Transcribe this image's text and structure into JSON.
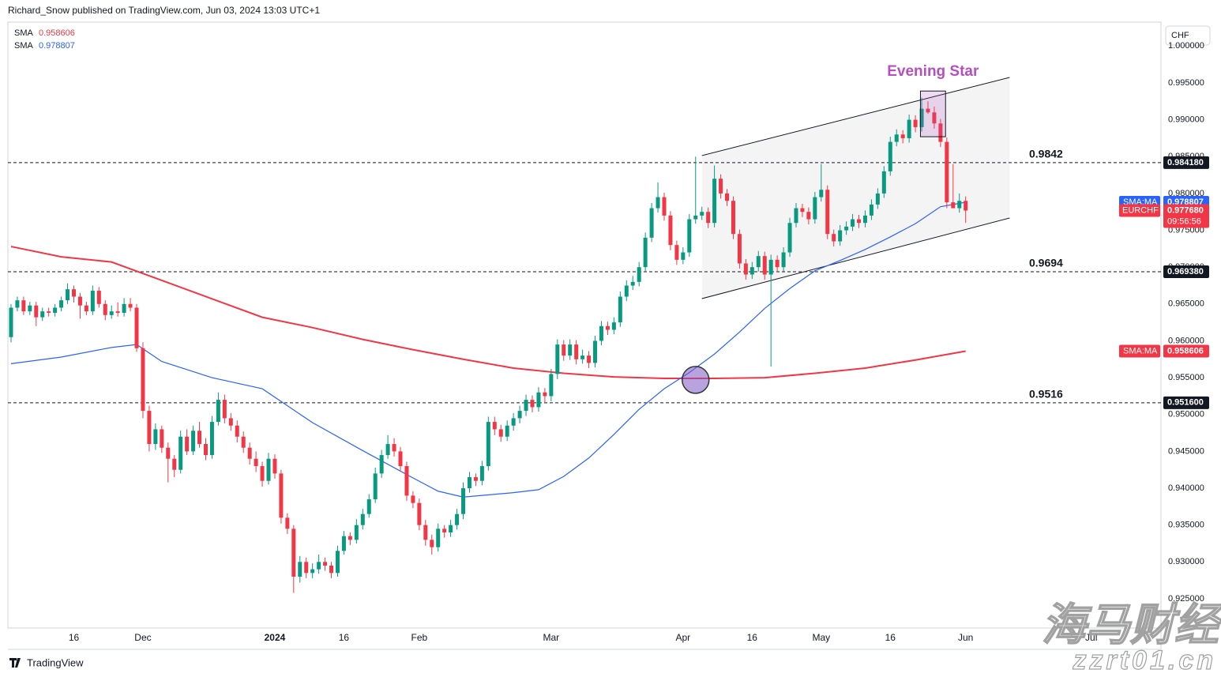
{
  "header": "Richard_Snow published on TradingView.com, Jun 03, 2024 13:03 UTC+1",
  "footer": "TradingView",
  "watermark": [
    "海马财经",
    "zzrt01.cn"
  ],
  "chart_data": {
    "type": "candlestick",
    "currency": "CHF",
    "grid": false,
    "up_color": "#089981",
    "down_color": "#f23645",
    "xlim": [
      -0.5,
      183.1
    ],
    "ylim": [
      0.92103,
      1.00325
    ],
    "xticks": [
      {
        "value": 10,
        "label": "16"
      },
      {
        "value": 21,
        "label": "Dec"
      },
      {
        "value": 42,
        "label": "2024"
      },
      {
        "value": 53,
        "label": "16"
      },
      {
        "value": 65,
        "label": "Feb"
      },
      {
        "value": 86,
        "label": "Mar"
      },
      {
        "value": 107,
        "label": "Apr"
      },
      {
        "value": 118,
        "label": "16"
      },
      {
        "value": 129,
        "label": "May"
      },
      {
        "value": 140,
        "label": "16"
      },
      {
        "value": 152,
        "label": "Jun"
      },
      {
        "value": 172,
        "label": "Jul"
      }
    ],
    "yticks": [
      {
        "value": 0.925,
        "label": "0.925000"
      },
      {
        "value": 0.93,
        "label": "0.930000"
      },
      {
        "value": 0.935,
        "label": "0.935000"
      },
      {
        "value": 0.94,
        "label": "0.940000"
      },
      {
        "value": 0.945,
        "label": "0.945000"
      },
      {
        "value": 0.95,
        "label": "0.950000"
      },
      {
        "value": 0.955,
        "label": "0.955000"
      },
      {
        "value": 0.96,
        "label": "0.960000"
      },
      {
        "value": 0.965,
        "label": "0.965000"
      },
      {
        "value": 0.97,
        "label": "0.970000"
      },
      {
        "value": 0.975,
        "label": "0.975000"
      },
      {
        "value": 0.98,
        "label": "0.980000"
      },
      {
        "value": 0.985,
        "label": "0.985000"
      },
      {
        "value": 0.99,
        "label": "0.990000"
      },
      {
        "value": 0.995,
        "label": "0.995000"
      },
      {
        "value": 1.0,
        "label": "1.000000"
      }
    ],
    "candles": {
      "name": "EURCHF",
      "last_value_label": "0.977680",
      "countdown": "09:56:56",
      "ohlc": [
        [
          0.9605,
          0.965,
          0.9598,
          0.9645
        ],
        [
          0.9645,
          0.966,
          0.964,
          0.9655
        ],
        [
          0.9655,
          0.966,
          0.9635,
          0.964
        ],
        [
          0.964,
          0.9653,
          0.9635,
          0.9648
        ],
        [
          0.9648,
          0.9653,
          0.962,
          0.9632
        ],
        [
          0.9632,
          0.9645,
          0.9627,
          0.964
        ],
        [
          0.964,
          0.9645,
          0.9633,
          0.9638
        ],
        [
          0.9638,
          0.965,
          0.9633,
          0.9645
        ],
        [
          0.9645,
          0.966,
          0.964,
          0.9655
        ],
        [
          0.9655,
          0.9678,
          0.965,
          0.967
        ],
        [
          0.967,
          0.9675,
          0.9652,
          0.966
        ],
        [
          0.966,
          0.9665,
          0.963,
          0.9648
        ],
        [
          0.9648,
          0.9653,
          0.9635,
          0.964
        ],
        [
          0.964,
          0.9675,
          0.9635,
          0.9668
        ],
        [
          0.9668,
          0.9673,
          0.9645,
          0.965
        ],
        [
          0.965,
          0.9655,
          0.9628,
          0.9635
        ],
        [
          0.9635,
          0.9648,
          0.963,
          0.964
        ],
        [
          0.964,
          0.9652,
          0.9633,
          0.9638
        ],
        [
          0.9638,
          0.9658,
          0.9633,
          0.965
        ],
        [
          0.965,
          0.9658,
          0.964,
          0.9645
        ],
        [
          0.9645,
          0.965,
          0.9585,
          0.959
        ],
        [
          0.959,
          0.9598,
          0.9495,
          0.9505
        ],
        [
          0.9505,
          0.9512,
          0.945,
          0.946
        ],
        [
          0.946,
          0.9488,
          0.9452,
          0.948
        ],
        [
          0.948,
          0.9485,
          0.9448,
          0.9455
        ],
        [
          0.9455,
          0.9462,
          0.9408,
          0.944
        ],
        [
          0.944,
          0.9445,
          0.9415,
          0.9425
        ],
        [
          0.9425,
          0.9478,
          0.942,
          0.947
        ],
        [
          0.947,
          0.948,
          0.9445,
          0.945
        ],
        [
          0.945,
          0.9485,
          0.9445,
          0.9478
        ],
        [
          0.9478,
          0.949,
          0.9455,
          0.946
        ],
        [
          0.946,
          0.9468,
          0.9438,
          0.9445
        ],
        [
          0.9445,
          0.9498,
          0.944,
          0.949
        ],
        [
          0.949,
          0.953,
          0.9485,
          0.952
        ],
        [
          0.952,
          0.9527,
          0.9488,
          0.9495
        ],
        [
          0.9495,
          0.9502,
          0.9478,
          0.9485
        ],
        [
          0.9485,
          0.9492,
          0.9462,
          0.947
        ],
        [
          0.947,
          0.9477,
          0.9448,
          0.9455
        ],
        [
          0.9455,
          0.9462,
          0.9432,
          0.944
        ],
        [
          0.944,
          0.945,
          0.9422,
          0.943
        ],
        [
          0.943,
          0.9436,
          0.9402,
          0.941
        ],
        [
          0.941,
          0.9448,
          0.9405,
          0.944
        ],
        [
          0.944,
          0.9446,
          0.9413,
          0.942
        ],
        [
          0.942,
          0.9425,
          0.9352,
          0.936
        ],
        [
          0.936,
          0.9366,
          0.9338,
          0.9345
        ],
        [
          0.9345,
          0.935,
          0.9258,
          0.928
        ],
        [
          0.928,
          0.9308,
          0.9272,
          0.93
        ],
        [
          0.93,
          0.9306,
          0.9278,
          0.9285
        ],
        [
          0.9285,
          0.9298,
          0.9278,
          0.929
        ],
        [
          0.929,
          0.931,
          0.9284,
          0.93
        ],
        [
          0.93,
          0.9306,
          0.9288,
          0.9295
        ],
        [
          0.9295,
          0.93,
          0.9278,
          0.9285
        ],
        [
          0.9285,
          0.9322,
          0.928,
          0.9315
        ],
        [
          0.9315,
          0.9342,
          0.931,
          0.9335
        ],
        [
          0.9335,
          0.934,
          0.9323,
          0.933
        ],
        [
          0.933,
          0.9358,
          0.9325,
          0.935
        ],
        [
          0.935,
          0.9372,
          0.9344,
          0.9365
        ],
        [
          0.9365,
          0.9392,
          0.936,
          0.9385
        ],
        [
          0.9385,
          0.9428,
          0.938,
          0.942
        ],
        [
          0.942,
          0.9452,
          0.9414,
          0.9445
        ],
        [
          0.9445,
          0.9472,
          0.944,
          0.946
        ],
        [
          0.946,
          0.9468,
          0.9443,
          0.945
        ],
        [
          0.945,
          0.9456,
          0.9424,
          0.943
        ],
        [
          0.943,
          0.9436,
          0.9383,
          0.939
        ],
        [
          0.939,
          0.9396,
          0.9373,
          0.938
        ],
        [
          0.938,
          0.9386,
          0.9343,
          0.935
        ],
        [
          0.935,
          0.9357,
          0.9322,
          0.933
        ],
        [
          0.933,
          0.9337,
          0.931,
          0.932
        ],
        [
          0.932,
          0.9352,
          0.9314,
          0.9345
        ],
        [
          0.9345,
          0.935,
          0.9333,
          0.934
        ],
        [
          0.934,
          0.9357,
          0.9334,
          0.935
        ],
        [
          0.935,
          0.9372,
          0.9344,
          0.9365
        ],
        [
          0.9365,
          0.9408,
          0.9358,
          0.94
        ],
        [
          0.94,
          0.9422,
          0.9394,
          0.9415
        ],
        [
          0.9415,
          0.942,
          0.9403,
          0.941
        ],
        [
          0.941,
          0.9437,
          0.9404,
          0.943
        ],
        [
          0.943,
          0.9497,
          0.9424,
          0.949
        ],
        [
          0.949,
          0.9497,
          0.9472,
          0.948
        ],
        [
          0.948,
          0.9486,
          0.9463,
          0.947
        ],
        [
          0.947,
          0.9492,
          0.9464,
          0.9485
        ],
        [
          0.9485,
          0.9502,
          0.9478,
          0.9495
        ],
        [
          0.9495,
          0.9512,
          0.9488,
          0.9505
        ],
        [
          0.9505,
          0.9527,
          0.9498,
          0.952
        ],
        [
          0.952,
          0.9526,
          0.9503,
          0.951
        ],
        [
          0.951,
          0.9537,
          0.9504,
          0.953
        ],
        [
          0.953,
          0.9536,
          0.9515,
          0.9525
        ],
        [
          0.9525,
          0.9562,
          0.9518,
          0.9555
        ],
        [
          0.9555,
          0.9602,
          0.9548,
          0.9595
        ],
        [
          0.9595,
          0.9601,
          0.9573,
          0.958
        ],
        [
          0.958,
          0.9602,
          0.9574,
          0.9595
        ],
        [
          0.9595,
          0.9601,
          0.9568,
          0.9575
        ],
        [
          0.9575,
          0.9588,
          0.9569,
          0.958
        ],
        [
          0.958,
          0.9586,
          0.9563,
          0.957
        ],
        [
          0.957,
          0.9607,
          0.9564,
          0.96
        ],
        [
          0.96,
          0.9627,
          0.9594,
          0.962
        ],
        [
          0.962,
          0.9626,
          0.9608,
          0.9615
        ],
        [
          0.9615,
          0.9632,
          0.9609,
          0.9625
        ],
        [
          0.9625,
          0.9667,
          0.9619,
          0.966
        ],
        [
          0.966,
          0.9682,
          0.9654,
          0.9675
        ],
        [
          0.9675,
          0.9688,
          0.9669,
          0.968
        ],
        [
          0.968,
          0.9707,
          0.9674,
          0.97
        ],
        [
          0.97,
          0.9747,
          0.9694,
          0.974
        ],
        [
          0.974,
          0.9787,
          0.9734,
          0.978
        ],
        [
          0.978,
          0.9815,
          0.9774,
          0.9795
        ],
        [
          0.9795,
          0.9801,
          0.9763,
          0.977
        ],
        [
          0.977,
          0.9776,
          0.9723,
          0.973
        ],
        [
          0.973,
          0.9736,
          0.9703,
          0.971
        ],
        [
          0.971,
          0.9727,
          0.9704,
          0.972
        ],
        [
          0.972,
          0.9772,
          0.9714,
          0.9765
        ],
        [
          0.9765,
          0.985,
          0.9759,
          0.977
        ],
        [
          0.977,
          0.9782,
          0.9764,
          0.9775
        ],
        [
          0.9775,
          0.9781,
          0.9753,
          0.976
        ],
        [
          0.976,
          0.9838,
          0.9754,
          0.982
        ],
        [
          0.982,
          0.9826,
          0.9793,
          0.98
        ],
        [
          0.98,
          0.9806,
          0.9783,
          0.979
        ],
        [
          0.979,
          0.9796,
          0.9738,
          0.9745
        ],
        [
          0.9745,
          0.9751,
          0.9698,
          0.9705
        ],
        [
          0.9705,
          0.9711,
          0.9683,
          0.969
        ],
        [
          0.969,
          0.9707,
          0.9684,
          0.97
        ],
        [
          0.97,
          0.9722,
          0.9694,
          0.9715
        ],
        [
          0.9715,
          0.9721,
          0.9683,
          0.969
        ],
        [
          0.969,
          0.9717,
          0.9565,
          0.971
        ],
        [
          0.971,
          0.9716,
          0.9693,
          0.97
        ],
        [
          0.97,
          0.9727,
          0.9694,
          0.972
        ],
        [
          0.972,
          0.9767,
          0.9714,
          0.976
        ],
        [
          0.976,
          0.9787,
          0.9754,
          0.978
        ],
        [
          0.978,
          0.9786,
          0.9768,
          0.9775
        ],
        [
          0.9775,
          0.9781,
          0.9758,
          0.9765
        ],
        [
          0.9765,
          0.9802,
          0.9759,
          0.9795
        ],
        [
          0.9795,
          0.984,
          0.9789,
          0.9805
        ],
        [
          0.9805,
          0.9811,
          0.9738,
          0.9745
        ],
        [
          0.9745,
          0.9751,
          0.9728,
          0.9735
        ],
        [
          0.9735,
          0.9757,
          0.9729,
          0.975
        ],
        [
          0.975,
          0.9762,
          0.9744,
          0.9755
        ],
        [
          0.9755,
          0.9772,
          0.9749,
          0.9765
        ],
        [
          0.9765,
          0.9771,
          0.9753,
          0.976
        ],
        [
          0.976,
          0.9777,
          0.9754,
          0.977
        ],
        [
          0.977,
          0.9792,
          0.9764,
          0.9785
        ],
        [
          0.9785,
          0.9807,
          0.9779,
          0.98
        ],
        [
          0.98,
          0.9837,
          0.9794,
          0.983
        ],
        [
          0.983,
          0.9877,
          0.9824,
          0.987
        ],
        [
          0.987,
          0.9887,
          0.9864,
          0.988
        ],
        [
          0.988,
          0.9886,
          0.9868,
          0.9875
        ],
        [
          0.9875,
          0.9907,
          0.9869,
          0.99
        ],
        [
          0.99,
          0.9906,
          0.9883,
          0.989
        ],
        [
          0.989,
          0.993,
          0.9884,
          0.9915
        ],
        [
          0.9915,
          0.9925,
          0.9908,
          0.991
        ],
        [
          0.991,
          0.9918,
          0.9888,
          0.9895
        ],
        [
          0.9895,
          0.9901,
          0.9863,
          0.987
        ],
        [
          0.987,
          0.9876,
          0.978,
          0.9788
        ],
        [
          0.9788,
          0.984,
          0.9782,
          0.978
        ],
        [
          0.978,
          0.98,
          0.9774,
          0.979
        ],
        [
          0.979,
          0.9796,
          0.976,
          0.97768
        ]
      ]
    },
    "series": [
      {
        "name": "SMA",
        "label": "SMA:MA",
        "color": "#f23645",
        "x": [
          0,
          8,
          16,
          24,
          32,
          40,
          48,
          56,
          64,
          72,
          80,
          88,
          96,
          104,
          112,
          120,
          128,
          136,
          144,
          152
        ],
        "values": [
          0.9728,
          0.9714,
          0.9707,
          0.9682,
          0.9657,
          0.9632,
          0.9618,
          0.9602,
          0.9588,
          0.9575,
          0.9563,
          0.9556,
          0.9551,
          0.9549,
          0.9549,
          0.955,
          0.9556,
          0.9563,
          0.9574,
          0.958606
        ]
      },
      {
        "name": "SMA",
        "label": "SMA:MA",
        "color": "#2962ff",
        "x": [
          0,
          8,
          16,
          20,
          24,
          32,
          40,
          48,
          56,
          64,
          68,
          72,
          80,
          84,
          88,
          92,
          96,
          100,
          104,
          108,
          112,
          116,
          120,
          124,
          128,
          132,
          136,
          140,
          144,
          148,
          152
        ],
        "values": [
          0.9569,
          0.9578,
          0.9591,
          0.9595,
          0.9572,
          0.955,
          0.9535,
          0.9489,
          0.9451,
          0.9414,
          0.9396,
          0.9388,
          0.9394,
          0.9398,
          0.9416,
          0.9441,
          0.9473,
          0.9507,
          0.9535,
          0.9557,
          0.9582,
          0.9612,
          0.9644,
          0.9671,
          0.9695,
          0.9709,
          0.9724,
          0.9741,
          0.9759,
          0.9782,
          0.978807
        ]
      }
    ],
    "levels": [
      {
        "value": 0.98418,
        "label": "0.9842",
        "axis_label": "0.984180"
      },
      {
        "value": 0.96938,
        "label": "0.9694",
        "axis_label": "0.969380"
      },
      {
        "value": 0.9516,
        "label": "0.9516",
        "axis_label": "0.951600"
      }
    ],
    "channel": {
      "x": [
        110,
        159
      ],
      "upper": [
        0.98514,
        0.99575
      ],
      "lower": [
        0.96573,
        0.97667
      ]
    },
    "pattern": {
      "text": "Evening Star",
      "color": "#b44fc0",
      "x": [
        144.8,
        148.8
      ],
      "y": [
        0.9877,
        0.9939
      ]
    },
    "cross_marker": {
      "x": 109,
      "y": 0.9547
    }
  }
}
